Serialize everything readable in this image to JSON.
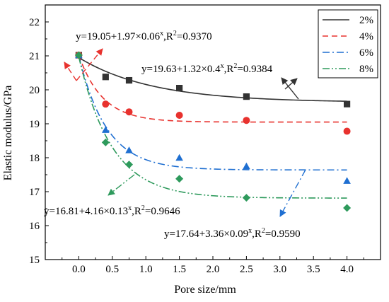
{
  "chart_data": {
    "type": "scatter",
    "xlabel": "Pore size/mm",
    "ylabel": "Elastic modulus/GPa",
    "xlim": [
      -0.5,
      4.5
    ],
    "ylim": [
      15,
      22.5
    ],
    "xticks": [
      "0.0",
      "0.5",
      "1.0",
      "1.5",
      "2.0",
      "2.5",
      "3.0",
      "3.5",
      "4.0"
    ],
    "yticks": [
      "15",
      "16",
      "17",
      "18",
      "19",
      "20",
      "21",
      "22"
    ],
    "legend_position": "top-right",
    "grid": false,
    "series": [
      {
        "name": "2%",
        "color": "#333333",
        "marker": "square",
        "line_style": "solid",
        "x": [
          0.0,
          0.4,
          0.75,
          1.5,
          2.5,
          4.0
        ],
        "y": [
          21.02,
          20.38,
          20.28,
          20.05,
          19.8,
          19.58
        ],
        "fit": {
          "a": 19.63,
          "b": 1.32,
          "c": 0.4
        }
      },
      {
        "name": "4%",
        "color": "#e8322e",
        "marker": "circle",
        "line_style": "dashed",
        "x": [
          0.0,
          0.4,
          0.75,
          1.5,
          2.5,
          4.0
        ],
        "y": [
          21.02,
          19.58,
          19.35,
          19.25,
          19.1,
          18.78
        ],
        "fit": {
          "a": 19.05,
          "b": 1.97,
          "c": 0.06
        }
      },
      {
        "name": "6%",
        "color": "#1f6fd1",
        "marker": "triangle",
        "line_style": "dashdot",
        "x": [
          0.0,
          0.4,
          0.75,
          1.5,
          2.5,
          4.0
        ],
        "y": [
          21.02,
          18.82,
          18.22,
          18.0,
          17.75,
          17.32
        ],
        "fit": {
          "a": 17.64,
          "b": 3.36,
          "c": 0.09
        }
      },
      {
        "name": "8%",
        "color": "#2e9a5c",
        "marker": "diamond",
        "line_style": "dashdotdot",
        "x": [
          0.0,
          0.4,
          0.75,
          1.5,
          2.5,
          4.0
        ],
        "y": [
          21.02,
          18.45,
          17.8,
          17.38,
          16.82,
          16.52
        ],
        "fit": {
          "a": 16.81,
          "b": 4.16,
          "c": 0.13
        }
      }
    ],
    "annotations": [
      {
        "series": "4%",
        "main": "y=19.05+1.97×0.06",
        "sup": "x",
        "r2": ",R",
        "r2sup": "2",
        "r2val": "=0.9370"
      },
      {
        "series": "2%",
        "main": "y=19.63+1.32×0.4",
        "sup": "x",
        "r2": ",R",
        "r2sup": "2",
        "r2val": "=0.9384"
      },
      {
        "series": "8%",
        "main": "y=16.81+4.16×0.13",
        "sup": "x",
        "r2": ",R",
        "r2sup": "2",
        "r2val": "=0.9646"
      },
      {
        "series": "6%",
        "main": "y=17.64+3.36×0.09",
        "sup": "x",
        "r2": ",R",
        "r2sup": "2",
        "r2val": "=0.9590"
      }
    ]
  }
}
